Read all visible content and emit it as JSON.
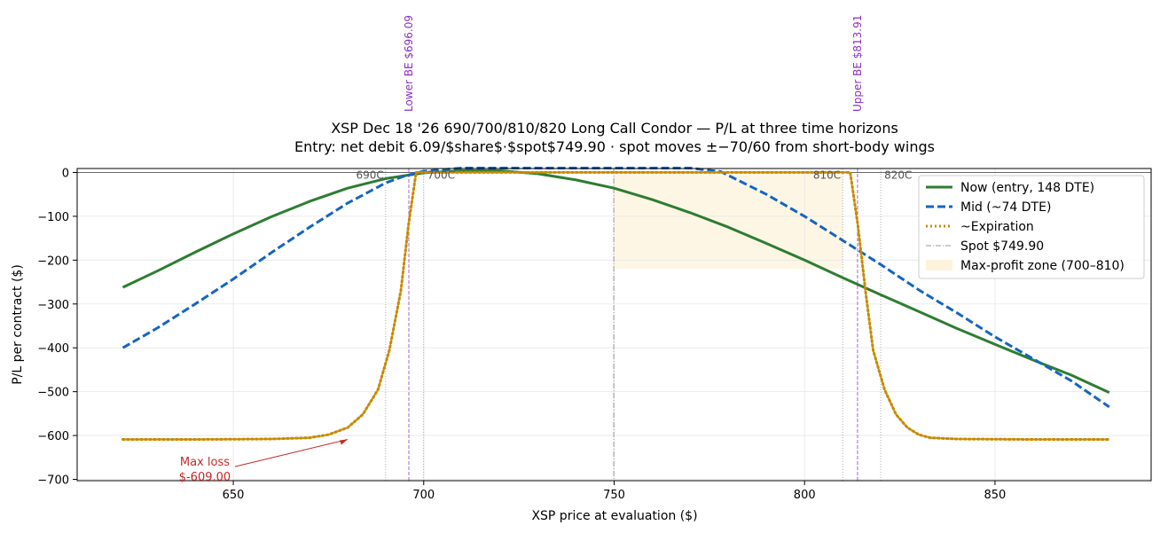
{
  "chart_data": {
    "type": "line",
    "title": "XSP Dec 18 '26 690/700/810/820 Long Call Condor — P/L at three time horizons",
    "subtitle": "Entry: net debit 6.09/$share$·$spot$749.90 · spot moves ±−70/60 from short-body wings",
    "xlabel": "XSP price at evaluation ($)",
    "ylabel": "P/L per contract ($)",
    "xlim": [
      609,
      891
    ],
    "ylim": [
      -703,
      9
    ],
    "xticks": [
      650,
      700,
      750,
      800,
      850
    ],
    "yticks": [
      0,
      -100,
      -200,
      -300,
      -400,
      -500,
      -600,
      -700
    ],
    "grid": true,
    "legend_position": "top-right",
    "series": [
      {
        "name": "Now (entry, 148 DTE)",
        "color": "#2e7d32",
        "style": "solid",
        "x": [
          621,
          630,
          640,
          650,
          660,
          670,
          680,
          690,
          700,
          710,
          720,
          730,
          740,
          750,
          760,
          770,
          780,
          790,
          800,
          810,
          820,
          830,
          840,
          850,
          860,
          870,
          880
        ],
        "y": [
          -262,
          -225,
          -182,
          -140,
          -101,
          -66,
          -36,
          -14,
          -1,
          4,
          4,
          -3,
          -17,
          -36,
          -62,
          -92,
          -125,
          -162,
          -200,
          -240,
          -279,
          -317,
          -356,
          -392,
          -428,
          -462,
          -502
        ]
      },
      {
        "name": "Mid (~74 DTE)",
        "color": "#1565c0",
        "style": "dashed",
        "x": [
          621,
          630,
          640,
          650,
          660,
          670,
          680,
          690,
          695,
          700,
          710,
          720,
          730,
          740,
          750,
          760,
          770,
          778,
          790,
          800,
          810,
          820,
          830,
          840,
          850,
          860,
          870,
          880
        ],
        "y": [
          -400,
          -355,
          -300,
          -243,
          -183,
          -125,
          -70,
          -24,
          -8,
          3,
          10,
          10,
          10,
          10,
          10,
          10,
          10,
          2,
          -50,
          -100,
          -155,
          -210,
          -268,
          -320,
          -375,
          -425,
          -475,
          -535
        ]
      },
      {
        "name": "~Expiration",
        "color": "#c88a00",
        "style": "dotted",
        "x": [
          621,
          640,
          660,
          670,
          675,
          680,
          684,
          688,
          691,
          694,
          696,
          698,
          812,
          814,
          816,
          818,
          821,
          824,
          827,
          830,
          833,
          840,
          860,
          880
        ],
        "y": [
          -609,
          -609,
          -608,
          -605,
          -598,
          -582,
          -552,
          -495,
          -405,
          -270,
          -120,
          0,
          0,
          -120,
          -270,
          -405,
          -495,
          -552,
          -582,
          -598,
          -605,
          -608,
          -609,
          -609
        ]
      }
    ],
    "spot": {
      "label": "Spot $749.90",
      "value": 749.9
    },
    "max_profit_zone": {
      "label": "Max-profit zone (700–810)",
      "from": 700,
      "to": 810
    },
    "strikes": [
      {
        "label": "690C",
        "value": 690
      },
      {
        "label": "700C",
        "value": 700
      },
      {
        "label": "810C",
        "value": 810
      },
      {
        "label": "820C",
        "value": 820
      }
    ],
    "breakevens": [
      {
        "label": "Lower BE $696.09",
        "value": 696.09
      },
      {
        "label": "Upper BE $813.91",
        "value": 813.91
      }
    ],
    "annotation": {
      "line1": "Max loss",
      "line2": "$-609.00",
      "target": [
        680,
        -609
      ],
      "text_at": [
        636,
        -675
      ]
    }
  }
}
